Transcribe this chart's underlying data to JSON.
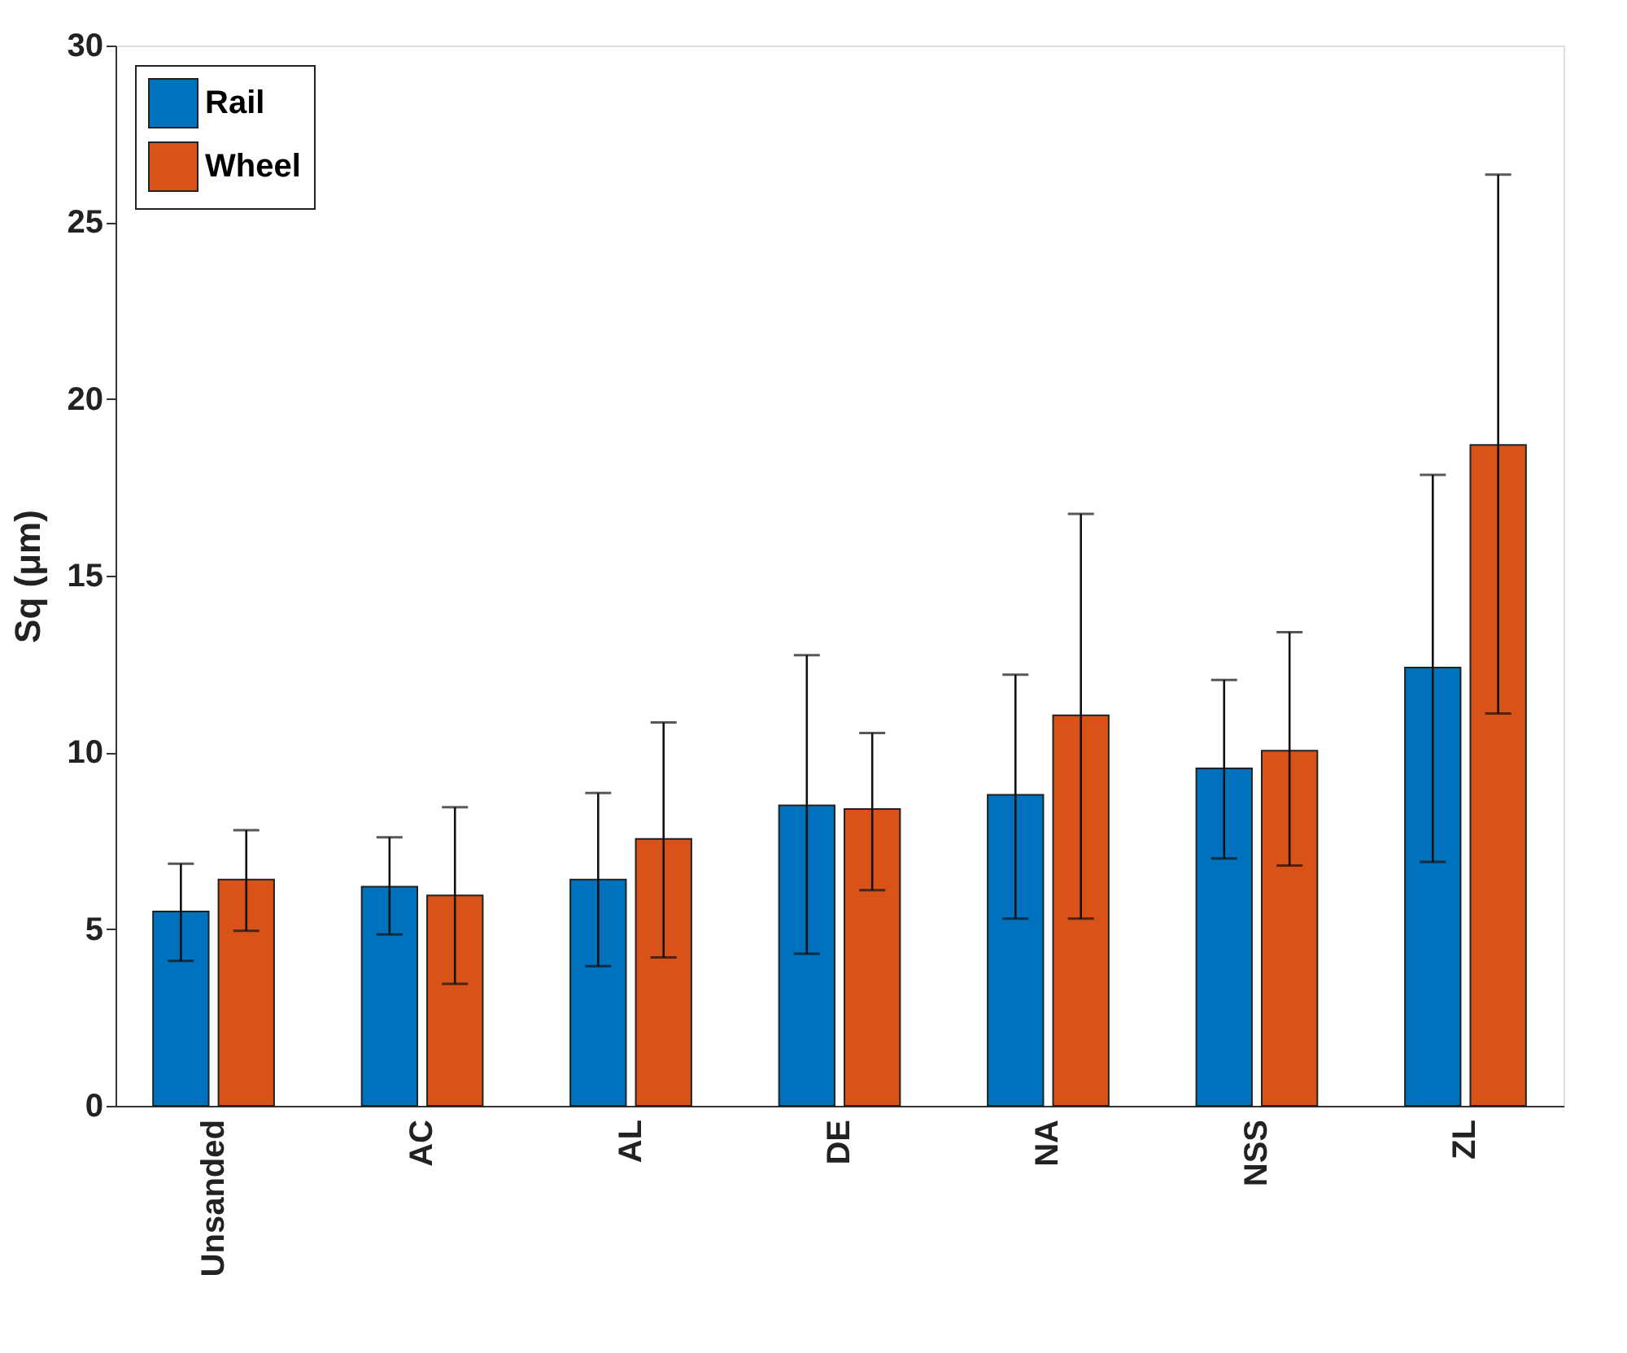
{
  "chart_data": {
    "type": "bar",
    "ylabel": "Sq (μm)",
    "categories": [
      "Unsanded",
      "AC",
      "AL",
      "DE",
      "NA",
      "NSS",
      "ZL"
    ],
    "series": [
      {
        "name": "Rail",
        "color": "#0072bd",
        "values": [
          5.5,
          6.2,
          6.4,
          8.5,
          8.8,
          9.55,
          12.4
        ],
        "errors": [
          [
            4.1,
            6.85
          ],
          [
            4.85,
            7.6
          ],
          [
            3.95,
            8.85
          ],
          [
            4.3,
            12.75
          ],
          [
            5.3,
            12.2
          ],
          [
            7.0,
            12.05
          ],
          [
            6.9,
            17.85
          ]
        ]
      },
      {
        "name": "Wheel",
        "color": "#d95319",
        "values": [
          6.4,
          5.95,
          7.55,
          8.4,
          11.05,
          10.05,
          18.7
        ],
        "errors": [
          [
            4.95,
            7.8
          ],
          [
            3.45,
            8.45
          ],
          [
            4.2,
            10.85
          ],
          [
            6.1,
            10.55
          ],
          [
            5.3,
            16.75
          ],
          [
            6.8,
            13.4
          ],
          [
            11.1,
            26.35
          ]
        ]
      }
    ],
    "ylim": [
      0,
      30
    ],
    "yticks": [
      0,
      5,
      10,
      15,
      20,
      25,
      30
    ],
    "grid": false,
    "legend": "top left"
  }
}
